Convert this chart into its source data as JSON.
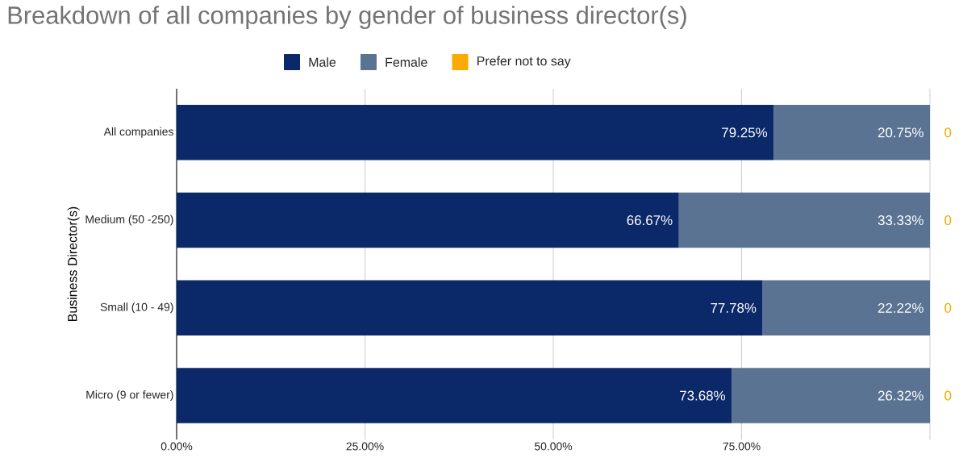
{
  "chart_data": {
    "type": "bar",
    "orientation": "horizontal",
    "stacked": true,
    "title": "Breakdown of all companies by gender of business director(s)",
    "ylabel": "Business Director(s)",
    "categories": [
      "All companies",
      "Medium (50 -250)",
      "Small (10 - 49)",
      "Micro (9 or fewer)"
    ],
    "series": [
      {
        "name": "Male",
        "color": "#0b2869",
        "values": [
          79.25,
          66.67,
          77.78,
          73.68
        ],
        "value_labels": [
          "79.25%",
          "66.67%",
          "77.78%",
          "73.68%"
        ]
      },
      {
        "name": "Female",
        "color": "#5a7393",
        "values": [
          20.75,
          33.33,
          22.22,
          26.32
        ],
        "value_labels": [
          "20.75%",
          "33.33%",
          "22.22%",
          "26.32%"
        ]
      },
      {
        "name": "Prefer not to say",
        "color": "#f9ab00",
        "values": [
          0,
          0,
          0,
          0
        ],
        "value_labels": [
          "0",
          "0",
          "0",
          "0"
        ]
      }
    ],
    "xlim": [
      0,
      100
    ],
    "xticks": [
      {
        "value": 0,
        "label": "0.00%"
      },
      {
        "value": 25,
        "label": "25.00%"
      },
      {
        "value": 50,
        "label": "50.00%"
      },
      {
        "value": 75,
        "label": "75.00%"
      },
      {
        "value": 100,
        "label": null
      }
    ],
    "grid": "x",
    "legend": "top"
  }
}
